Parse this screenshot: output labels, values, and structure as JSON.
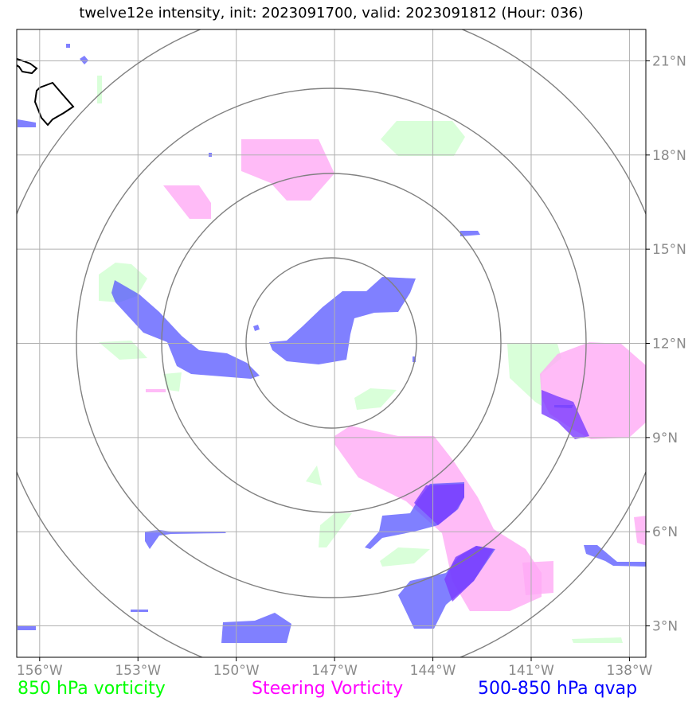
{
  "title": "twelve12e intensity, init: 2023091700, valid: 2023091812 (Hour: 036)",
  "legend": {
    "vort850": {
      "label": "850 hPa vorticity",
      "color": "#00ff00"
    },
    "steering": {
      "label": "Steering Vorticity",
      "color": "#ff00ff"
    },
    "qvap": {
      "label": "500-850 hPa qvap",
      "color": "#0000ff"
    }
  },
  "axes": {
    "lon_ticks": [
      {
        "value": -156,
        "label": "156°W"
      },
      {
        "value": -153,
        "label": "153°W"
      },
      {
        "value": -150,
        "label": "150°W"
      },
      {
        "value": -147,
        "label": "147°W"
      },
      {
        "value": -144,
        "label": "144°W"
      },
      {
        "value": -141,
        "label": "141°W"
      },
      {
        "value": -138,
        "label": "138°W"
      }
    ],
    "lat_ticks": [
      {
        "value": 3,
        "label": "3°N"
      },
      {
        "value": 6,
        "label": "6°N"
      },
      {
        "value": 9,
        "label": "9°N"
      },
      {
        "value": 12,
        "label": "12°N"
      },
      {
        "value": 15,
        "label": "15°N"
      },
      {
        "value": 18,
        "label": "18°N"
      },
      {
        "value": 21,
        "label": "21°N"
      }
    ],
    "lon_range": [
      -156.7,
      -137.5
    ],
    "lat_range": [
      2.0,
      22.0
    ]
  },
  "colors": {
    "vort850_fill": "#ccffcc",
    "steering_fill": "#ffaaf5",
    "qvap_fill": "#5555ff",
    "range_ring": "#808080",
    "grid": "#b0b0b0",
    "coast": "#000000"
  }
}
